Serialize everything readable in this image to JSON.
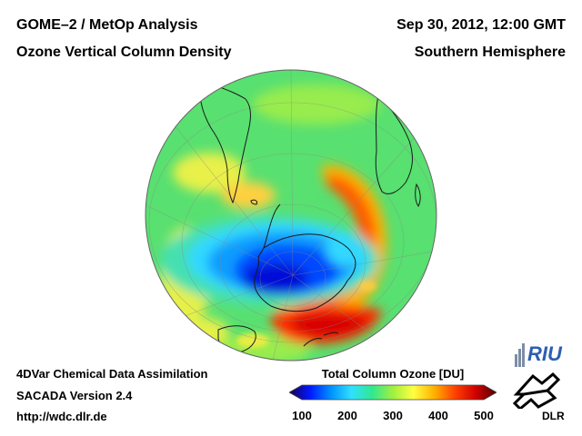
{
  "header": {
    "instrument": "GOME–2 / MetOp Analysis",
    "product": "Ozone Vertical Column Density",
    "datetime": "Sep 30, 2012, 12:00 GMT",
    "region": "Southern Hemisphere"
  },
  "footer": {
    "method": "4DVar Chemical Data Assimilation",
    "version": "SACADA Version 2.4",
    "url": "http://wdc.dlr.de"
  },
  "colorbar": {
    "title": "Total Column Ozone [DU]",
    "min": 100,
    "max": 500,
    "tick_labels": [
      "100",
      "200",
      "300",
      "400",
      "500"
    ],
    "tick_values": [
      100,
      200,
      300,
      400,
      500
    ],
    "colors": [
      "#1a0050",
      "#0018ff",
      "#0090ff",
      "#30e0ff",
      "#30e890",
      "#a0f040",
      "#ffff40",
      "#ffb000",
      "#ff4000",
      "#d00000",
      "#500000"
    ]
  },
  "map": {
    "projection": "orthographic, south polar view",
    "ozone_hole_center": "over East Antarctica",
    "max_region": "south of Australia / New Zealand"
  },
  "logos": {
    "riu": "RIU",
    "dlr": "DLR"
  }
}
